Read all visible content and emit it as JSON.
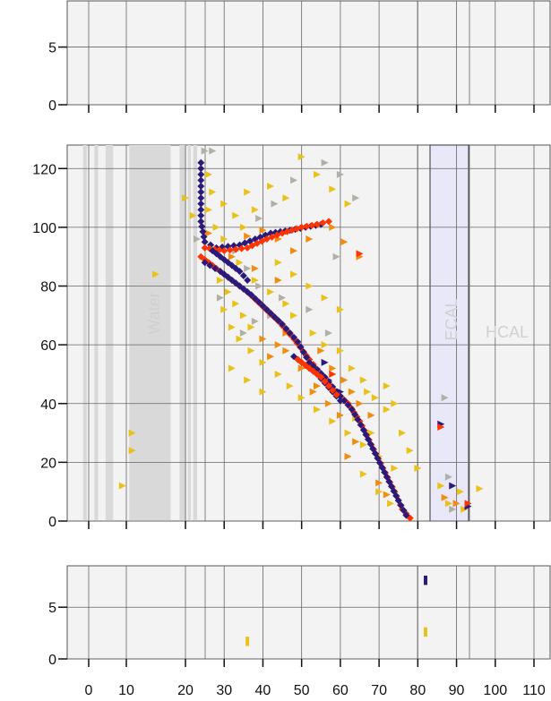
{
  "colors": {
    "panel_bg": "#f3f3f3",
    "panel_border": "#555555",
    "grid": "#666666",
    "detector_band": "#d9d9d9",
    "ecal_fill": "#e8e8f8",
    "ecal_border": "#333333",
    "label": "#cfcfcf"
  },
  "chart_data": [
    {
      "type": "scatter",
      "panel": "top",
      "ylim": [
        0,
        9
      ],
      "yticks": [
        "0",
        "5"
      ],
      "ytick_values": [
        0,
        5
      ],
      "points": []
    },
    {
      "type": "scatter",
      "panel": "main",
      "ylim": [
        0,
        128
      ],
      "yticks": [
        "0",
        "20",
        "40",
        "60",
        "80",
        "100",
        "120"
      ],
      "ytick_values": [
        0,
        20,
        40,
        60,
        80,
        100,
        120
      ],
      "region_labels": {
        "water": "Water",
        "ecal": "ECAL",
        "hcal": "HCAL"
      },
      "tracks": [
        {
          "color": "#2a1a7a",
          "points": [
            [
              24,
              122
            ],
            [
              24,
              116
            ],
            [
              24,
              108
            ],
            [
              24,
              102
            ],
            [
              25,
              95
            ],
            [
              28,
              93
            ],
            [
              34,
              94
            ],
            [
              38,
              96
            ],
            [
              42,
              98
            ],
            [
              47,
              99
            ],
            [
              51,
              100
            ],
            [
              55,
              101
            ]
          ]
        },
        {
          "color": "#ff3300",
          "points": [
            [
              24,
              90
            ],
            [
              28,
              86
            ],
            [
              32,
              82
            ],
            [
              36,
              78
            ],
            [
              40,
              73
            ],
            [
              44,
              68
            ],
            [
              48,
              62
            ],
            [
              52,
              55
            ],
            [
              55,
              50
            ],
            [
              58,
              45
            ],
            [
              62,
              40
            ],
            [
              65,
              34
            ],
            [
              68,
              26
            ],
            [
              71,
              18
            ],
            [
              74,
              10
            ],
            [
              76,
              4
            ],
            [
              78,
              1
            ]
          ]
        },
        {
          "color": "#2a1a7a",
          "points": [
            [
              25,
              88
            ],
            [
              29,
              85
            ],
            [
              33,
              81
            ],
            [
              37,
              77
            ],
            [
              41,
              72
            ],
            [
              45,
              67
            ],
            [
              49,
              61
            ],
            [
              52,
              54
            ],
            [
              56,
              49
            ],
            [
              59,
              44
            ],
            [
              63,
              38
            ],
            [
              66,
              31
            ],
            [
              69,
              23
            ],
            [
              72,
              15
            ],
            [
              75,
              7
            ],
            [
              77,
              2
            ]
          ]
        },
        {
          "color": "#ff3300",
          "points": [
            [
              25,
              93
            ],
            [
              30,
              92
            ],
            [
              36,
              93
            ],
            [
              41,
              96
            ],
            [
              45,
              98
            ],
            [
              50,
              100
            ],
            [
              54,
              101
            ],
            [
              57,
              102
            ]
          ]
        },
        {
          "color": "#2a1a7a",
          "points": [
            [
              27,
              92
            ],
            [
              31,
              88
            ],
            [
              34,
              85
            ],
            [
              36,
              82
            ]
          ]
        },
        {
          "color": "#2a1a7a",
          "points": [
            [
              48,
              56
            ],
            [
              51,
              53
            ],
            [
              54,
              50
            ],
            [
              56,
              47
            ],
            [
              58,
              44
            ],
            [
              60,
              41
            ]
          ]
        },
        {
          "color": "#ff3300",
          "points": [
            [
              49,
              55
            ],
            [
              52,
              52
            ],
            [
              55,
              49
            ],
            [
              57,
              46
            ],
            [
              59,
              43
            ]
          ]
        }
      ],
      "scatter": [
        {
          "color": "#e8c21a",
          "points": [
            [
              15,
              84
            ],
            [
              11,
              30
            ],
            [
              11,
              24
            ],
            [
              9,
              12
            ],
            [
              20,
              110
            ],
            [
              22,
              104
            ],
            [
              26,
              118
            ],
            [
              27,
              112
            ],
            [
              30,
              108
            ],
            [
              33,
              104
            ],
            [
              35,
              100
            ],
            [
              29,
              82
            ],
            [
              31,
              78
            ],
            [
              33,
              74
            ],
            [
              35,
              70
            ],
            [
              37,
              66
            ],
            [
              30,
              72
            ],
            [
              32,
              66
            ],
            [
              34,
              62
            ],
            [
              37,
              58
            ],
            [
              40,
              54
            ],
            [
              44,
              50
            ],
            [
              47,
              46
            ],
            [
              50,
              42
            ],
            [
              54,
              38
            ],
            [
              58,
              34
            ],
            [
              62,
              30
            ],
            [
              66,
              26
            ],
            [
              70,
              22
            ],
            [
              74,
              18
            ],
            [
              60,
              58
            ],
            [
              63,
              52
            ],
            [
              66,
              48
            ],
            [
              69,
              42
            ],
            [
              72,
              38
            ],
            [
              62,
              108
            ],
            [
              58,
              113
            ],
            [
              54,
              118
            ],
            [
              50,
              124
            ],
            [
              46,
              110
            ],
            [
              42,
              114
            ],
            [
              38,
              106
            ],
            [
              36,
              112
            ],
            [
              44,
              88
            ],
            [
              48,
              84
            ],
            [
              52,
              80
            ],
            [
              56,
              76
            ],
            [
              60,
              72
            ],
            [
              40,
              44
            ],
            [
              36,
              48
            ],
            [
              32,
              52
            ],
            [
              66,
              16
            ],
            [
              70,
              10
            ],
            [
              73,
              6
            ],
            [
              76,
              30
            ],
            [
              78,
              24
            ],
            [
              80,
              18
            ],
            [
              86,
              12
            ],
            [
              88,
              6
            ],
            [
              91,
              10
            ],
            [
              96,
              11
            ],
            [
              92,
              4
            ],
            [
              72,
              46
            ],
            [
              74,
              40
            ],
            [
              67,
              44
            ],
            [
              64,
              35
            ],
            [
              68,
              30
            ],
            [
              56,
              60
            ],
            [
              53,
              64
            ],
            [
              48,
              70
            ],
            [
              46,
              74
            ],
            [
              42,
              78
            ],
            [
              38,
              82
            ],
            [
              34,
              88
            ],
            [
              30,
              96
            ],
            [
              28,
              100
            ],
            [
              26,
              106
            ]
          ]
        },
        {
          "color": "#f08c10",
          "points": [
            [
              26,
              98
            ],
            [
              32,
              90
            ],
            [
              38,
              86
            ],
            [
              44,
              82
            ],
            [
              40,
              62
            ],
            [
              46,
              58
            ],
            [
              50,
              52
            ],
            [
              54,
              46
            ],
            [
              58,
              52
            ],
            [
              61,
              48
            ],
            [
              63,
              44
            ],
            [
              57,
              40
            ],
            [
              60,
              36
            ],
            [
              65,
              40
            ],
            [
              68,
              36
            ],
            [
              64,
              27
            ],
            [
              62,
              22
            ],
            [
              58,
              100
            ],
            [
              61,
              95
            ],
            [
              52,
              96
            ],
            [
              48,
              92
            ],
            [
              44,
              96
            ],
            [
              40,
              99
            ],
            [
              36,
              97
            ],
            [
              65,
              90
            ],
            [
              46,
              64
            ],
            [
              44,
              60
            ],
            [
              42,
              56
            ],
            [
              55,
              58
            ],
            [
              53,
              44
            ],
            [
              87,
              8
            ],
            [
              90,
              6
            ],
            [
              70,
              13
            ],
            [
              72,
              9
            ]
          ]
        },
        {
          "color": "#b0b0a8",
          "points": [
            [
              23,
              96
            ],
            [
              25,
              126
            ],
            [
              27,
              126
            ],
            [
              33,
              92
            ],
            [
              36,
              86
            ],
            [
              39,
              80
            ],
            [
              29,
              76
            ],
            [
              35,
              64
            ],
            [
              38,
              68
            ],
            [
              42,
              70
            ],
            [
              45,
              76
            ],
            [
              60,
              118
            ],
            [
              64,
              110
            ],
            [
              48,
              116
            ],
            [
              56,
              122
            ],
            [
              87,
              42
            ],
            [
              88,
              15
            ],
            [
              89,
              4
            ],
            [
              52,
              72
            ],
            [
              57,
              64
            ],
            [
              43,
              108
            ],
            [
              39,
              103
            ],
            [
              59,
              90
            ]
          ]
        },
        {
          "color": "#2a1a7a",
          "points": [
            [
              86,
              33
            ],
            [
              89,
              12
            ],
            [
              93,
              5
            ],
            [
              56,
              54
            ],
            [
              57,
              48
            ],
            [
              60,
              44
            ]
          ]
        },
        {
          "color": "#ff3300",
          "points": [
            [
              86,
              32
            ],
            [
              93,
              6
            ],
            [
              65,
              91
            ],
            [
              58,
              50
            ],
            [
              54,
              52
            ]
          ]
        }
      ]
    },
    {
      "type": "scatter",
      "panel": "bottom",
      "ylim": [
        0,
        9
      ],
      "yticks": [
        "0",
        "5"
      ],
      "ytick_values": [
        0,
        5
      ],
      "xticks": [
        "0",
        "10",
        "20",
        "30",
        "40",
        "50",
        "60",
        "70",
        "80",
        "90",
        "100",
        "110"
      ],
      "xtick_values": [
        0,
        10,
        20,
        30,
        40,
        50,
        60,
        70,
        80,
        90,
        100,
        110
      ],
      "marks": [
        {
          "x": 36,
          "y": 1.7,
          "h": 0.9,
          "color": "#e8c21a"
        },
        {
          "x": 82,
          "y": 2.6,
          "h": 0.9,
          "color": "#e8c21a"
        },
        {
          "x": 82,
          "y": 7.6,
          "h": 0.9,
          "color": "#2a1a7a"
        }
      ]
    }
  ]
}
